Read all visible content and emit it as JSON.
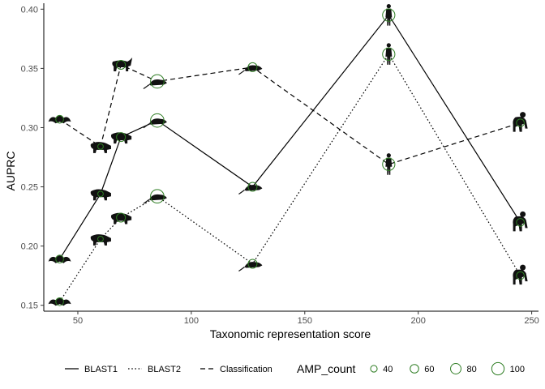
{
  "chart_data": {
    "type": "line",
    "xlabel": "Taxonomic representation score",
    "ylabel": "AUPRC",
    "xlim": [
      35,
      253
    ],
    "ylim": [
      0.145,
      0.405
    ],
    "x_ticks": [
      50,
      100,
      150,
      200,
      250
    ],
    "y_ticks": [
      0.15,
      0.2,
      0.25,
      0.3,
      0.35,
      0.4
    ],
    "grid": false,
    "legend_position": "bottom",
    "series": [
      {
        "name": "BLAST1",
        "linestyle": "solid",
        "points": [
          {
            "x": 42,
            "y": 0.189,
            "amp": 40,
            "animal": "bat"
          },
          {
            "x": 60,
            "y": 0.244,
            "amp": 20,
            "animal": "boar"
          },
          {
            "x": 69,
            "y": 0.292,
            "amp": 50,
            "animal": "boar"
          },
          {
            "x": 85,
            "y": 0.306,
            "amp": 90,
            "animal": "rat"
          },
          {
            "x": 127,
            "y": 0.25,
            "amp": 50,
            "animal": "rat"
          },
          {
            "x": 187,
            "y": 0.395,
            "amp": 80,
            "animal": "human"
          },
          {
            "x": 245,
            "y": 0.22,
            "amp": 40,
            "animal": "chimp"
          }
        ]
      },
      {
        "name": "BLAST2",
        "linestyle": "dotted",
        "points": [
          {
            "x": 42,
            "y": 0.153,
            "amp": 40,
            "animal": "bat"
          },
          {
            "x": 60,
            "y": 0.206,
            "amp": 20,
            "animal": "boar"
          },
          {
            "x": 69,
            "y": 0.224,
            "amp": 50,
            "animal": "boar"
          },
          {
            "x": 85,
            "y": 0.242,
            "amp": 90,
            "animal": "rat"
          },
          {
            "x": 127,
            "y": 0.185,
            "amp": 50,
            "animal": "rat"
          },
          {
            "x": 187,
            "y": 0.362,
            "amp": 80,
            "animal": "human"
          },
          {
            "x": 245,
            "y": 0.175,
            "amp": 40,
            "animal": "chimp"
          }
        ]
      },
      {
        "name": "Classification",
        "linestyle": "dashed",
        "points": [
          {
            "x": 42,
            "y": 0.307,
            "amp": 40,
            "animal": "bat"
          },
          {
            "x": 60,
            "y": 0.284,
            "amp": 20,
            "animal": "boar"
          },
          {
            "x": 69,
            "y": 0.353,
            "amp": 50,
            "animal": "ox"
          },
          {
            "x": 85,
            "y": 0.339,
            "amp": 90,
            "animal": "rat"
          },
          {
            "x": 127,
            "y": 0.351,
            "amp": 50,
            "animal": "rat"
          },
          {
            "x": 187,
            "y": 0.269,
            "amp": 80,
            "animal": "human"
          },
          {
            "x": 245,
            "y": 0.304,
            "amp": 40,
            "animal": "chimp"
          }
        ]
      }
    ],
    "size_legend": {
      "title": "AMP_count",
      "breaks": [
        40,
        60,
        80,
        100
      ],
      "labels": [
        "40",
        "60",
        "80",
        "100"
      ]
    },
    "colors": {
      "point_stroke": "#2e7d23",
      "line": "#000000",
      "axis": "#000000",
      "tick_label": "#4d4d4d"
    }
  }
}
